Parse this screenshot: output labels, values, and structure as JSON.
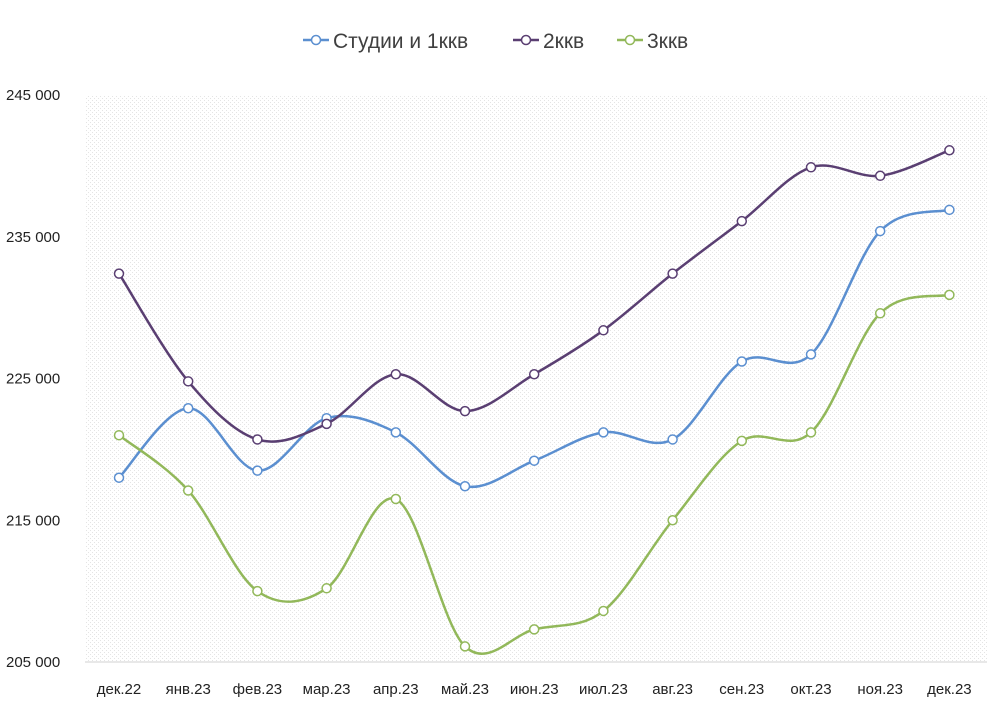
{
  "chart_data": {
    "type": "line",
    "title": "",
    "xlabel": "",
    "ylabel": "",
    "categories": [
      "дек.22",
      "янв.23",
      "фев.23",
      "мар.23",
      "апр.23",
      "май.23",
      "июн.23",
      "июл.23",
      "авг.23",
      "сен.23",
      "окт.23",
      "ноя.23",
      "дек.23"
    ],
    "ylim": [
      205000,
      245000
    ],
    "yticks": [
      205000,
      215000,
      225000,
      235000,
      245000
    ],
    "ytick_labels": [
      "205 000",
      "215 000",
      "225 000",
      "235 000",
      "245 000"
    ],
    "grid": false,
    "smooth": true,
    "legend_position": "top",
    "series": [
      {
        "name": "Студии и 1ккв",
        "color": "#5b8fd0",
        "values": [
          218000,
          222900,
          218500,
          222200,
          221200,
          217400,
          219200,
          221200,
          220700,
          226200,
          226700,
          235400,
          236900
        ]
      },
      {
        "name": "2ккв",
        "color": "#5a3f72",
        "values": [
          232400,
          224800,
          220700,
          221800,
          225300,
          222700,
          225300,
          228400,
          232400,
          236100,
          239900,
          239300,
          241100
        ]
      },
      {
        "name": "3ккв",
        "color": "#92b85a",
        "values": [
          221000,
          217100,
          210000,
          210200,
          216500,
          206100,
          207300,
          208600,
          215000,
          220600,
          221200,
          229600,
          230900
        ]
      }
    ]
  }
}
